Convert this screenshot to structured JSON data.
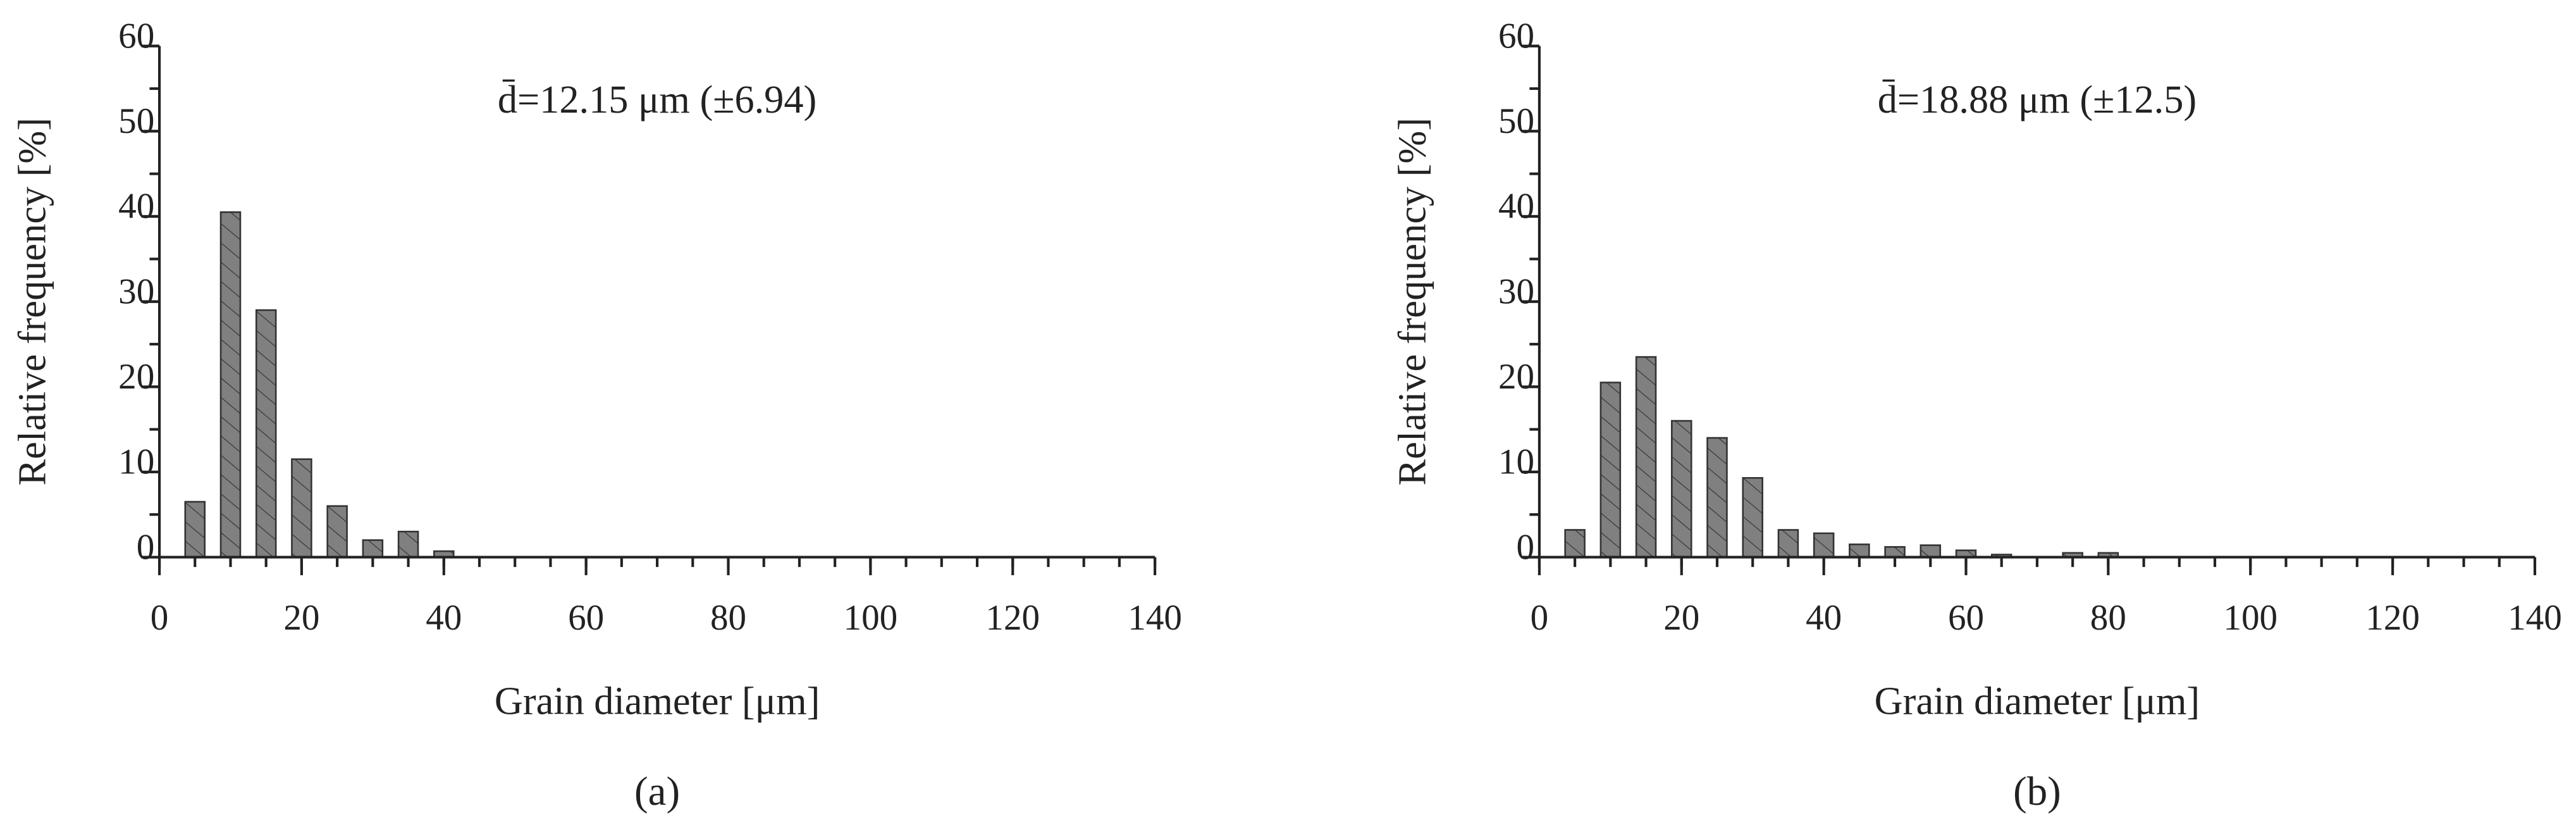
{
  "chart_data": [
    {
      "type": "bar",
      "label": "(a)",
      "annotation": "d̄=12.15 μm (±6.94)",
      "xlabel": "Grain diameter [μm]",
      "ylabel": "Relative frequency [%]",
      "x": [
        5,
        10,
        15,
        20,
        25,
        30,
        35,
        40
      ],
      "values": [
        6.5,
        40.5,
        29,
        11.5,
        6,
        2,
        3,
        0.7
      ],
      "color": "#808080",
      "hatch": true,
      "xlim": [
        0,
        140
      ],
      "xticks": [
        0,
        20,
        40,
        60,
        80,
        100,
        120,
        140
      ],
      "x_minor_step": 5,
      "ylim": [
        0,
        60
      ],
      "yticks": [
        0,
        10,
        20,
        30,
        40,
        50,
        60
      ],
      "y_minor_step": 5
    },
    {
      "type": "bar",
      "label": "(b)",
      "annotation": "d̄=18.88 μm (±12.5)",
      "xlabel": "Grain diameter [μm]",
      "ylabel": "Relative frequency [%]",
      "x": [
        5,
        10,
        15,
        20,
        25,
        30,
        35,
        40,
        45,
        50,
        55,
        60,
        65,
        70,
        75,
        80
      ],
      "values": [
        3.2,
        20.5,
        23.5,
        16,
        14,
        9.3,
        3.2,
        2.8,
        1.5,
        1.2,
        1.4,
        0.8,
        0.3,
        0,
        0.5,
        0.5
      ],
      "color": "#808080",
      "hatch": true,
      "xlim": [
        0,
        140
      ],
      "xticks": [
        0,
        20,
        40,
        60,
        80,
        100,
        120,
        140
      ],
      "x_minor_step": 5,
      "ylim": [
        0,
        60
      ],
      "yticks": [
        0,
        10,
        20,
        30,
        40,
        50,
        60
      ],
      "y_minor_step": 5
    }
  ]
}
